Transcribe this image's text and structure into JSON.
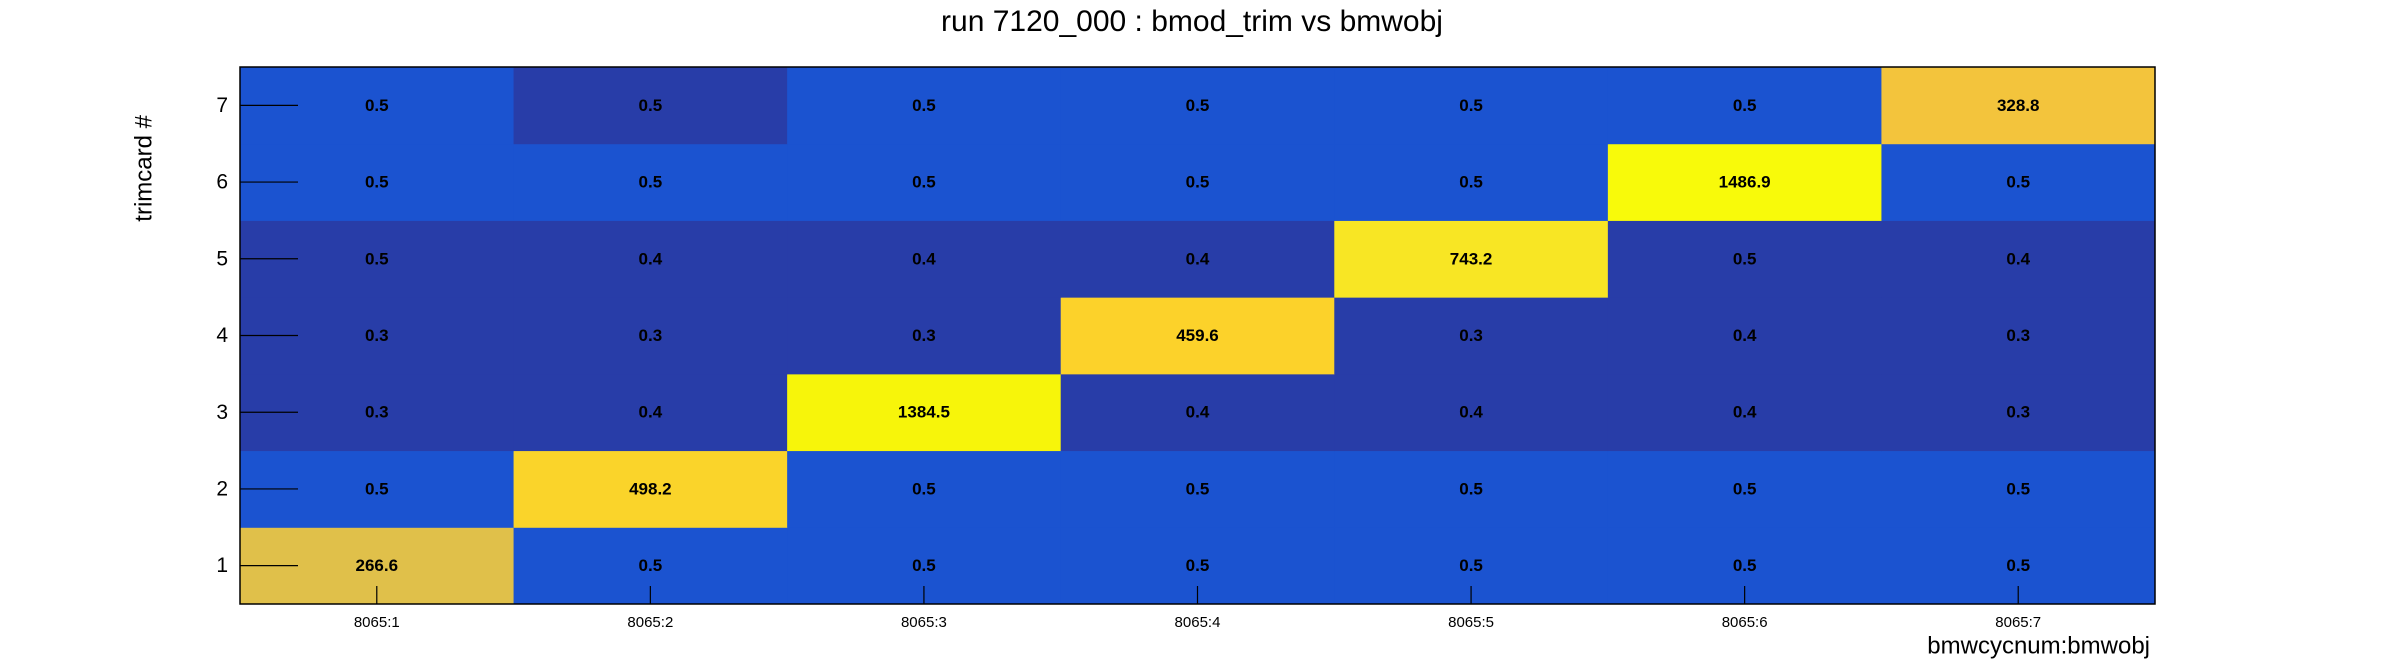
{
  "chart_data": {
    "type": "heatmap",
    "title": "run 7120_000 : bmod_trim vs bmwobj",
    "x_label": "bmwcycnum:bmwobj",
    "y_label": "trimcard #",
    "categories": [
      "8065:1",
      "8065:2",
      "8065:3",
      "8065:4",
      "8065:5",
      "8065:6",
      "8065:7"
    ],
    "y_categories": [
      1,
      2,
      3,
      4,
      5,
      6,
      7
    ],
    "values": [
      [
        266.6,
        0.5,
        0.5,
        0.5,
        0.5,
        0.5,
        0.5
      ],
      [
        0.5,
        498.2,
        0.5,
        0.5,
        0.5,
        0.5,
        0.5
      ],
      [
        0.3,
        0.4,
        1384.5,
        0.4,
        0.4,
        0.4,
        0.3
      ],
      [
        0.3,
        0.3,
        0.3,
        459.6,
        0.3,
        0.4,
        0.3
      ],
      [
        0.5,
        0.4,
        0.4,
        0.4,
        743.2,
        0.5,
        0.4
      ],
      [
        0.5,
        0.5,
        0.5,
        0.5,
        0.5,
        1486.9,
        0.5
      ],
      [
        0.5,
        0.5,
        0.5,
        0.5,
        0.5,
        0.5,
        328.8
      ]
    ],
    "colors": [
      [
        "#e0c04a",
        "#1b53d0",
        "#1b53d0",
        "#1b53d0",
        "#1b53d0",
        "#1b53d0",
        "#1b53d0"
      ],
      [
        "#1b53d0",
        "#fad42a",
        "#1b53d0",
        "#1b53d0",
        "#1b53d0",
        "#1b53d0",
        "#1b53d0"
      ],
      [
        "#283da8",
        "#283da8",
        "#f7f50a",
        "#283da8",
        "#283da8",
        "#283da8",
        "#283da8"
      ],
      [
        "#283da8",
        "#283da8",
        "#283da8",
        "#fcd22a",
        "#283da8",
        "#283da8",
        "#283da8"
      ],
      [
        "#283da8",
        "#283da8",
        "#283da8",
        "#283da8",
        "#f8e624",
        "#283da8",
        "#283da8"
      ],
      [
        "#1b53d0",
        "#1b53d0",
        "#1b53d0",
        "#1b53d0",
        "#1b53d0",
        "#f8fa0a",
        "#1b53d0"
      ],
      [
        "#1b53d0",
        "#283da8",
        "#1b53d0",
        "#1b53d0",
        "#1b53d0",
        "#1b53d0",
        "#f3c43c"
      ]
    ]
  }
}
